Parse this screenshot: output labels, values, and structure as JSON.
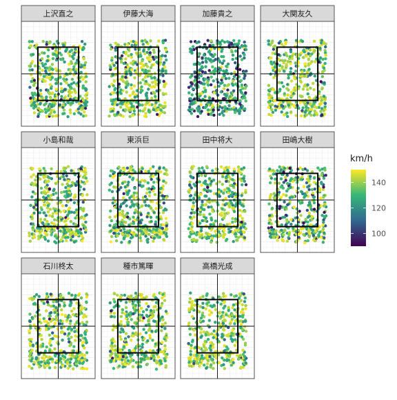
{
  "chart_data": {
    "type": "scatter",
    "facets": [
      "上沢直之",
      "伊藤大海",
      "加藤貴之",
      "大関友久",
      "小島和哉",
      "東浜巨",
      "田中将大",
      "田嶋大樹",
      "石川柊太",
      "種市篤暉",
      "高橋光成"
    ],
    "xlim": [
      -1.5,
      1.5
    ],
    "ylim": [
      -2.5,
      2.5
    ],
    "strike_zone": {
      "x": [
        -0.83,
        0.83
      ],
      "y": [
        -1.27,
        1.27
      ]
    },
    "grid": true,
    "legend": {
      "title": "km/h",
      "placement": "right",
      "range": [
        90,
        150
      ],
      "ticks": [
        {
          "value": 100,
          "label": "100"
        },
        {
          "value": 120,
          "label": "120"
        },
        {
          "value": 140,
          "label": "140"
        }
      ],
      "stops": [
        {
          "value": 90,
          "color": "#440154"
        },
        {
          "value": 110,
          "color": "#31688e"
        },
        {
          "value": 130,
          "color": "#35b779"
        },
        {
          "value": 150,
          "color": "#fde725"
        }
      ]
    },
    "colors": {
      "slow": "#440154",
      "mid_slow": "#31688e",
      "mid": "#35b779",
      "fast": "#fde725",
      "strip": "#d9d9d9",
      "strike_zone": "#000000",
      "grid": "#ebebeb"
    }
  }
}
